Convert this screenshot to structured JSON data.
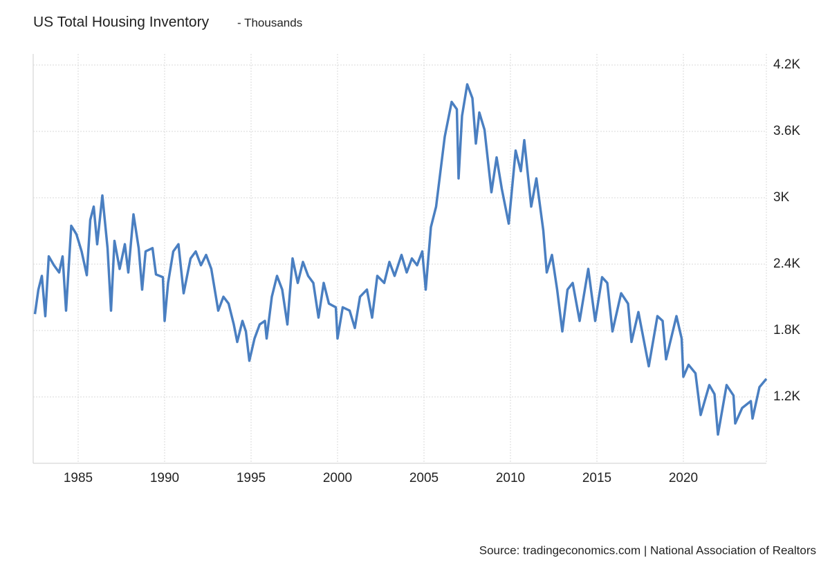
{
  "chart_data": {
    "type": "line",
    "title": "US Total Housing Inventory",
    "subtitle": "- Thousands",
    "source": "Source: tradingeconomics.com | National Association of Realtors",
    "color": "#4a7fc1",
    "grid": true,
    "xlim": [
      1982.4,
      2024.8
    ],
    "xticks": [
      1985,
      1990,
      1995,
      2000,
      2005,
      2010,
      2015,
      2020
    ],
    "ylim": [
      600,
      4300
    ],
    "yticks": [
      {
        "value": 1200,
        "label": "1.2K"
      },
      {
        "value": 1800,
        "label": "1.8K"
      },
      {
        "value": 2400,
        "label": "2.4K"
      },
      {
        "value": 3000,
        "label": "3K"
      },
      {
        "value": 3600,
        "label": "3.6K"
      },
      {
        "value": 4200,
        "label": "4.2K"
      }
    ],
    "x": [
      1982.5,
      1982.7,
      1982.9,
      1983.1,
      1983.3,
      1983.6,
      1983.9,
      1984.1,
      1984.3,
      1984.6,
      1984.9,
      1985.2,
      1985.5,
      1985.7,
      1985.9,
      1986.1,
      1986.4,
      1986.7,
      1986.9,
      1987.1,
      1987.4,
      1987.7,
      1987.9,
      1988.2,
      1988.5,
      1988.7,
      1988.9,
      1989.3,
      1989.5,
      1989.9,
      1990.0,
      1990.2,
      1990.5,
      1990.8,
      1991.1,
      1991.5,
      1991.8,
      1992.1,
      1992.4,
      1992.7,
      1993.1,
      1993.4,
      1993.7,
      1994.0,
      1994.2,
      1994.5,
      1994.7,
      1994.9,
      1995.2,
      1995.5,
      1995.8,
      1995.9,
      1996.2,
      1996.5,
      1996.8,
      1997.1,
      1997.4,
      1997.7,
      1998.0,
      1998.3,
      1998.6,
      1998.9,
      1999.2,
      1999.5,
      1999.9,
      2000.0,
      2000.3,
      2000.7,
      2001.0,
      2001.3,
      2001.7,
      2002.0,
      2002.3,
      2002.7,
      2003.0,
      2003.3,
      2003.7,
      2004.0,
      2004.3,
      2004.6,
      2004.9,
      2005.1,
      2005.4,
      2005.7,
      2006.2,
      2006.6,
      2006.9,
      2007.0,
      2007.2,
      2007.5,
      2007.8,
      2008.0,
      2008.2,
      2008.5,
      2008.9,
      2009.2,
      2009.5,
      2009.9,
      2010.3,
      2010.6,
      2010.8,
      2011.2,
      2011.5,
      2011.9,
      2012.1,
      2012.4,
      2012.7,
      2013.0,
      2013.3,
      2013.6,
      2014.0,
      2014.5,
      2014.9,
      2015.3,
      2015.6,
      2015.9,
      2016.4,
      2016.8,
      2017.0,
      2017.4,
      2018.0,
      2018.5,
      2018.8,
      2019.0,
      2019.6,
      2019.9,
      2020.0,
      2020.3,
      2020.7,
      2021.0,
      2021.5,
      2021.8,
      2022.0,
      2022.5,
      2022.9,
      2023.0,
      2023.4,
      2023.9,
      2024.0,
      2024.4,
      2024.8
    ],
    "values": [
      1948,
      2170,
      2294,
      1930,
      2470,
      2390,
      2325,
      2470,
      1980,
      2747,
      2670,
      2515,
      2300,
      2800,
      2920,
      2580,
      3020,
      2545,
      1980,
      2610,
      2357,
      2580,
      2325,
      2850,
      2545,
      2170,
      2515,
      2545,
      2307,
      2282,
      1887,
      2230,
      2515,
      2580,
      2137,
      2451,
      2515,
      2390,
      2483,
      2357,
      1980,
      2105,
      2043,
      1855,
      1697,
      1887,
      1792,
      1527,
      1728,
      1855,
      1887,
      1728,
      2105,
      2294,
      2170,
      1855,
      2451,
      2230,
      2420,
      2294,
      2230,
      1917,
      2230,
      2043,
      2010,
      1728,
      2010,
      1980,
      1823,
      2105,
      2170,
      1917,
      2294,
      2230,
      2420,
      2294,
      2483,
      2325,
      2451,
      2390,
      2515,
      2170,
      2735,
      2920,
      3552,
      3866,
      3800,
      3175,
      3740,
      4025,
      3900,
      3490,
      3770,
      3615,
      3050,
      3365,
      3080,
      2766,
      3426,
      3240,
      3520,
      2920,
      3175,
      2703,
      2325,
      2483,
      2170,
      1792,
      2170,
      2230,
      1887,
      2357,
      1887,
      2282,
      2230,
      1792,
      2137,
      2043,
      1697,
      1967,
      1477,
      1930,
      1887,
      1540,
      1930,
      1728,
      1382,
      1490,
      1414,
      1037,
      1307,
      1225,
      860,
      1307,
      1212,
      960,
      1100,
      1162,
      1005,
      1288,
      1363
    ]
  }
}
